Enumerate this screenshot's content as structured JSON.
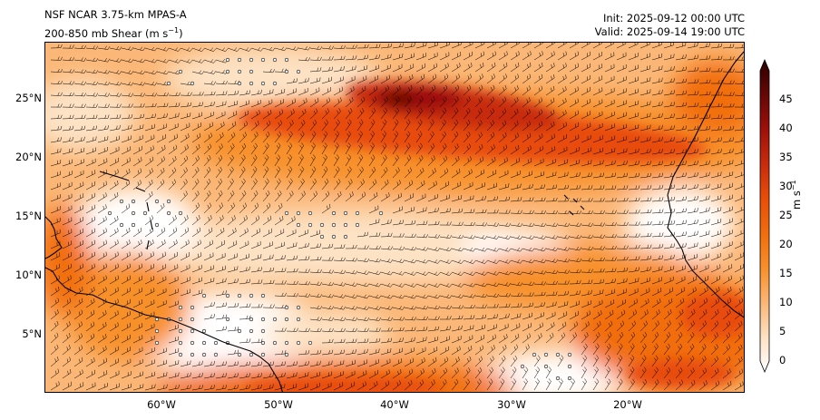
{
  "header": {
    "model": "NSF NCAR 3.75-km MPAS-A",
    "field_prefix": "200-850 mb Shear (m s",
    "field_exp": "−1",
    "field_suffix": ")",
    "init": "Init: 2025-09-12 00:00 UTC",
    "valid": "Valid: 2025-09-14 19:00 UTC"
  },
  "axes": {
    "lon_ticks": [
      "60°W",
      "50°W",
      "40°W",
      "30°W",
      "20°W"
    ],
    "lat_ticks": [
      "25°N",
      "20°N",
      "15°N",
      "10°N",
      "5°N"
    ]
  },
  "colorbar": {
    "ticks": [
      "0",
      "5",
      "10",
      "15",
      "20",
      "25",
      "30",
      "35",
      "40",
      "45"
    ],
    "unit_base": "m s",
    "unit_exp": "−1",
    "colors": [
      "#ffffff",
      "#fde2c4",
      "#fbb777",
      "#f8902a",
      "#f26e0c",
      "#e84c08",
      "#c72a0c",
      "#9e0f0a",
      "#640706",
      "#2d0000"
    ]
  },
  "map": {
    "extent_lon": [
      -70,
      -10
    ],
    "extent_lat": [
      0,
      30
    ],
    "shading_levels": [
      0,
      5,
      10,
      15,
      20,
      25,
      30,
      35,
      40,
      45
    ]
  }
}
